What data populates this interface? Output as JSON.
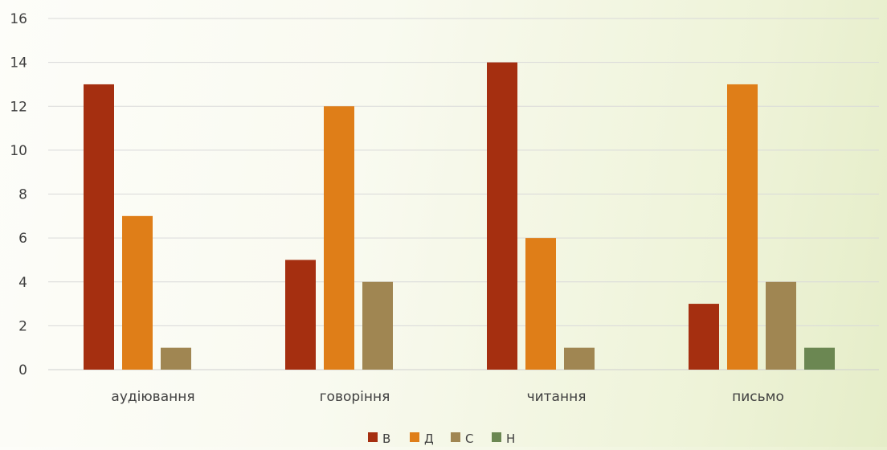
{
  "chart_data": {
    "type": "bar",
    "title": "",
    "xlabel": "",
    "ylabel": "",
    "categories": [
      "аудіювання",
      "говоріння",
      "читання",
      "письмо"
    ],
    "series": [
      {
        "name": "В",
        "color": "#a52f10",
        "values": [
          13,
          5,
          14,
          3
        ]
      },
      {
        "name": "Д",
        "color": "#df7e18",
        "values": [
          7,
          12,
          6,
          13
        ]
      },
      {
        "name": "С",
        "color": "#a08652",
        "values": [
          1,
          4,
          1,
          4
        ]
      },
      {
        "name": "Н",
        "color": "#6b8752",
        "values": [
          0,
          0,
          0,
          1
        ]
      }
    ],
    "ylim": [
      0,
      16
    ],
    "yticks": [
      0,
      2,
      4,
      6,
      8,
      10,
      12,
      14,
      16
    ],
    "grid": true,
    "legend": "bottom-center"
  }
}
